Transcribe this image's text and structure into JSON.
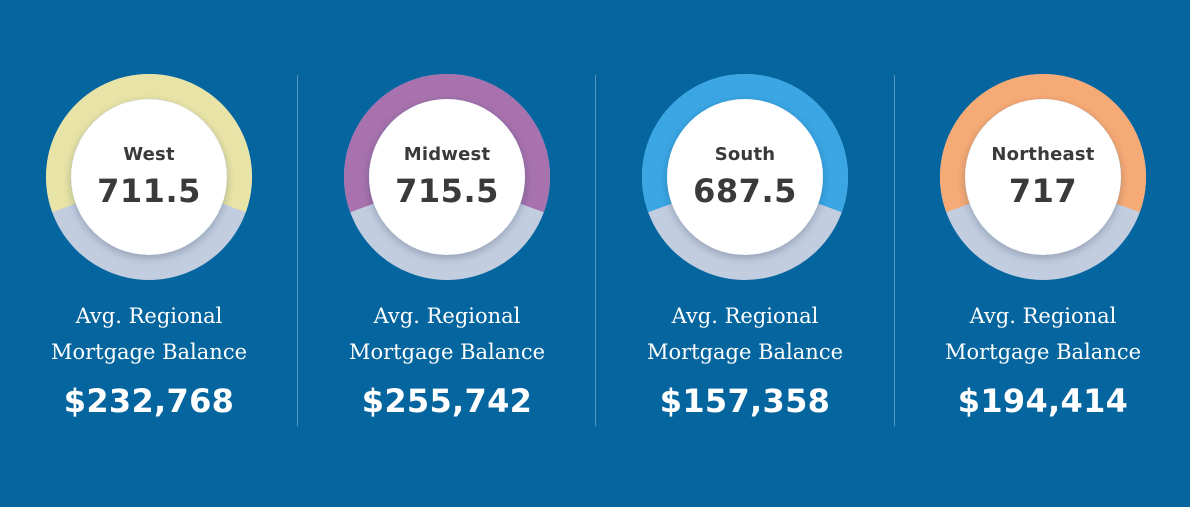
{
  "chart_data": {
    "type": "gauge",
    "caption_line1": "Avg. Regional",
    "caption_line2": "Mortgage Balance",
    "regions": [
      {
        "name": "West",
        "score": "711.5",
        "balance": "$232,768",
        "color": "#e8e3a6"
      },
      {
        "name": "Midwest",
        "score": "715.5",
        "balance": "$255,742",
        "color": "#a772ad"
      },
      {
        "name": "South",
        "score": "687.5",
        "balance": "$157,358",
        "color": "#3aa6e4"
      },
      {
        "name": "Northeast",
        "score": "717",
        "balance": "$194,414",
        "color": "#f6aa75"
      }
    ],
    "track_color": "#c3cde0",
    "background_color": "#05659f"
  }
}
